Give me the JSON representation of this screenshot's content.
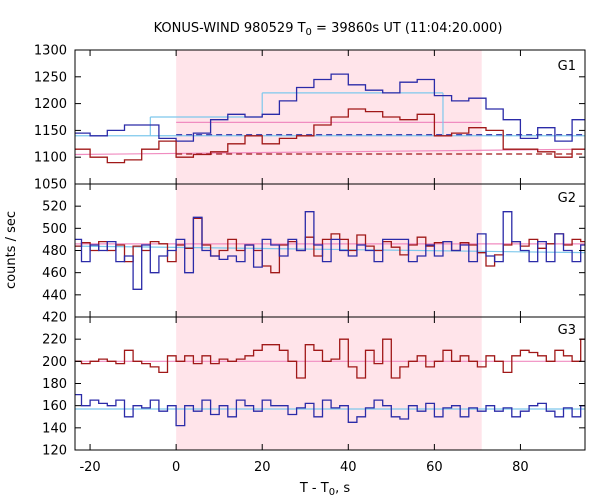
{
  "chart_data": {
    "type": "line",
    "title_main": "KONUS-WIND 980529 T",
    "title_sub": "0",
    "title_rest": " = 39860s UT (11:04:20.000)",
    "xlabel_main": "T - T",
    "xlabel_sub": "0",
    "xlabel_rest": ", s",
    "ylabel": "counts / sec",
    "xlim": [
      -23.5,
      95
    ],
    "xticks": [
      -20,
      0,
      20,
      40,
      60,
      80
    ],
    "shaded_x": [
      0,
      71
    ],
    "colors": {
      "shade": "#ffe4ea",
      "blue_step": "#2b2ba8",
      "red_step": "#a01818",
      "cyan_line": "#7ec8ec",
      "pink_line": "#f08cc0",
      "blue_dash": "#2b2ba8",
      "red_dash": "#a01818"
    },
    "panels": [
      {
        "label": "G1",
        "ylim": [
          1050,
          1300
        ],
        "yticks": [
          1050,
          1100,
          1150,
          1200,
          1250,
          1300
        ],
        "bin_edges": [
          -24,
          -20,
          -16,
          -12,
          -8,
          -4,
          0,
          4,
          8,
          12,
          16,
          20,
          24,
          28,
          32,
          36,
          40,
          44,
          48,
          52,
          56,
          60,
          64,
          68,
          72,
          76,
          80,
          84,
          88,
          92,
          96
        ],
        "series": [
          {
            "color": "blue_step",
            "values": [
              1145,
              1140,
              1150,
              1160,
              1160,
              1135,
              1130,
              1145,
              1170,
              1180,
              1175,
              1180,
              1205,
              1230,
              1245,
              1255,
              1235,
              1225,
              1220,
              1240,
              1245,
              1215,
              1205,
              1210,
              1190,
              1170,
              1135,
              1155,
              1130,
              1170
            ]
          },
          {
            "color": "red_step",
            "values": [
              1115,
              1100,
              1090,
              1095,
              1115,
              1130,
              1100,
              1105,
              1110,
              1125,
              1140,
              1125,
              1135,
              1140,
              1160,
              1175,
              1190,
              1185,
              1175,
              1170,
              1180,
              1140,
              1145,
              1155,
              1150,
              1115,
              1115,
              1110,
              1100,
              1115
            ]
          }
        ],
        "flats": [
          {
            "color": "cyan_line",
            "style": "solid",
            "x": [
              -24,
              96
            ],
            "y": [
              1140,
              1140
            ]
          },
          {
            "color": "pink_line",
            "style": "solid",
            "x": [
              -24,
              96
            ],
            "y": [
              1105,
              1115
            ]
          },
          {
            "color": "blue_dash",
            "style": "dash",
            "x": [
              0,
              96
            ],
            "y": [
              1142,
              1142
            ]
          },
          {
            "color": "red_dash",
            "style": "dash",
            "x": [
              0,
              96
            ],
            "y": [
              1106,
              1106
            ]
          },
          {
            "color": "cyan_line",
            "style": "solid",
            "x": [
              -6,
              20
            ],
            "y": [
              1175,
              1175
            ]
          },
          {
            "color": "cyan_line",
            "style": "solid",
            "x": [
              20,
              62
            ],
            "y": [
              1220,
              1220
            ]
          },
          {
            "color": "pink_line",
            "style": "solid",
            "x": [
              0,
              71
            ],
            "y": [
              1165,
              1165
            ]
          }
        ],
        "vlines": [
          {
            "color": "cyan_line",
            "x": -6,
            "y": [
              1140,
              1175
            ]
          },
          {
            "color": "cyan_line",
            "x": 20,
            "y": [
              1175,
              1220
            ]
          },
          {
            "color": "cyan_line",
            "x": 62,
            "y": [
              1140,
              1220
            ]
          }
        ]
      },
      {
        "label": "G2",
        "ylim": [
          420,
          540
        ],
        "yticks": [
          420,
          440,
          460,
          480,
          500,
          520
        ],
        "bin_edges": [
          -24,
          -22,
          -20,
          -18,
          -16,
          -14,
          -12,
          -10,
          -8,
          -6,
          -4,
          -2,
          0,
          2,
          4,
          6,
          8,
          10,
          12,
          14,
          16,
          18,
          20,
          22,
          24,
          26,
          28,
          30,
          32,
          34,
          36,
          38,
          40,
          42,
          44,
          46,
          48,
          50,
          52,
          54,
          56,
          58,
          60,
          62,
          64,
          66,
          68,
          70,
          72,
          74,
          76,
          78,
          80,
          82,
          84,
          86,
          88,
          90,
          92,
          94,
          96
        ],
        "series": [
          {
            "color": "red_step",
            "values": [
              484,
              487,
              480,
              488,
              480,
              485,
              470,
              484,
              480,
              488,
              486,
              470,
              485,
              482,
              509,
              485,
              475,
              480,
              490,
              480,
              485,
              480,
              466,
              460,
              485,
              488,
              480,
              492,
              475,
              490,
              495,
              490,
              480,
              494,
              484,
              480,
              488,
              483,
              476,
              485,
              492,
              484,
              487,
              488,
              480,
              487,
              485,
              478,
              466,
              476,
              485,
              488,
              484,
              490,
              482,
              486,
              495,
              485,
              490,
              488
            ]
          },
          {
            "color": "blue_step",
            "values": [
              490,
              470,
              485,
              480,
              488,
              470,
              475,
              445,
              485,
              460,
              475,
              480,
              490,
              460,
              510,
              480,
              475,
              472,
              475,
              470,
              485,
              465,
              490,
              485,
              475,
              490,
              480,
              515,
              485,
              470,
              490,
              480,
              475,
              485,
              480,
              470,
              490,
              490,
              490,
              470,
              475,
              485,
              475,
              488,
              480,
              485,
              470,
              495,
              475,
              470,
              515,
              488,
              480,
              470,
              488,
              470,
              495,
              480,
              470,
              485
            ]
          }
        ],
        "flats": [
          {
            "color": "pink_line",
            "style": "solid",
            "x": [
              -24,
              96
            ],
            "y": [
              486,
              486
            ]
          },
          {
            "color": "cyan_line",
            "style": "solid",
            "x": [
              -24,
              96
            ],
            "y": [
              484,
              478
            ]
          }
        ],
        "vlines": []
      },
      {
        "label": "G3",
        "ylim": [
          120,
          240
        ],
        "yticks": [
          120,
          140,
          160,
          180,
          200,
          220
        ],
        "bin_edges": [
          -24,
          -22,
          -20,
          -18,
          -16,
          -14,
          -12,
          -10,
          -8,
          -6,
          -4,
          -2,
          0,
          2,
          4,
          6,
          8,
          10,
          12,
          14,
          16,
          18,
          20,
          22,
          24,
          26,
          28,
          30,
          32,
          34,
          36,
          38,
          40,
          42,
          44,
          46,
          48,
          50,
          52,
          54,
          56,
          58,
          60,
          62,
          64,
          66,
          68,
          70,
          72,
          74,
          76,
          78,
          80,
          82,
          84,
          86,
          88,
          90,
          92,
          94,
          96
        ],
        "series": [
          {
            "color": "red_step",
            "values": [
              200,
              198,
              200,
              202,
              200,
              198,
              210,
              200,
              198,
              195,
              190,
              205,
              200,
              205,
              198,
              205,
              198,
              202,
              200,
              202,
              205,
              210,
              215,
              215,
              210,
              200,
              185,
              215,
              210,
              200,
              202,
              220,
              195,
              185,
              210,
              198,
              220,
              185,
              195,
              200,
              205,
              195,
              200,
              210,
              200,
              205,
              200,
              195,
              205,
              200,
              190,
              205,
              210,
              208,
              205,
              200,
              210,
              205,
              200,
              220
            ]
          },
          {
            "color": "blue_step",
            "values": [
              170,
              160,
              165,
              162,
              160,
              165,
              150,
              160,
              158,
              165,
              155,
              160,
              142,
              160,
              155,
              165,
              152,
              160,
              150,
              165,
              160,
              155,
              165,
              160,
              160,
              152,
              158,
              162,
              150,
              165,
              158,
              160,
              145,
              150,
              158,
              165,
              160,
              150,
              148,
              160,
              155,
              162,
              150,
              158,
              160,
              150,
              158,
              155,
              160,
              155,
              158,
              150,
              155,
              160,
              162,
              155,
              150,
              158,
              150,
              160
            ]
          }
        ],
        "flats": [
          {
            "color": "pink_line",
            "style": "solid",
            "x": [
              -24,
              96
            ],
            "y": [
              200,
              200
            ]
          },
          {
            "color": "cyan_line",
            "style": "solid",
            "x": [
              -24,
              96
            ],
            "y": [
              157,
              157
            ]
          }
        ],
        "vlines": []
      }
    ]
  }
}
